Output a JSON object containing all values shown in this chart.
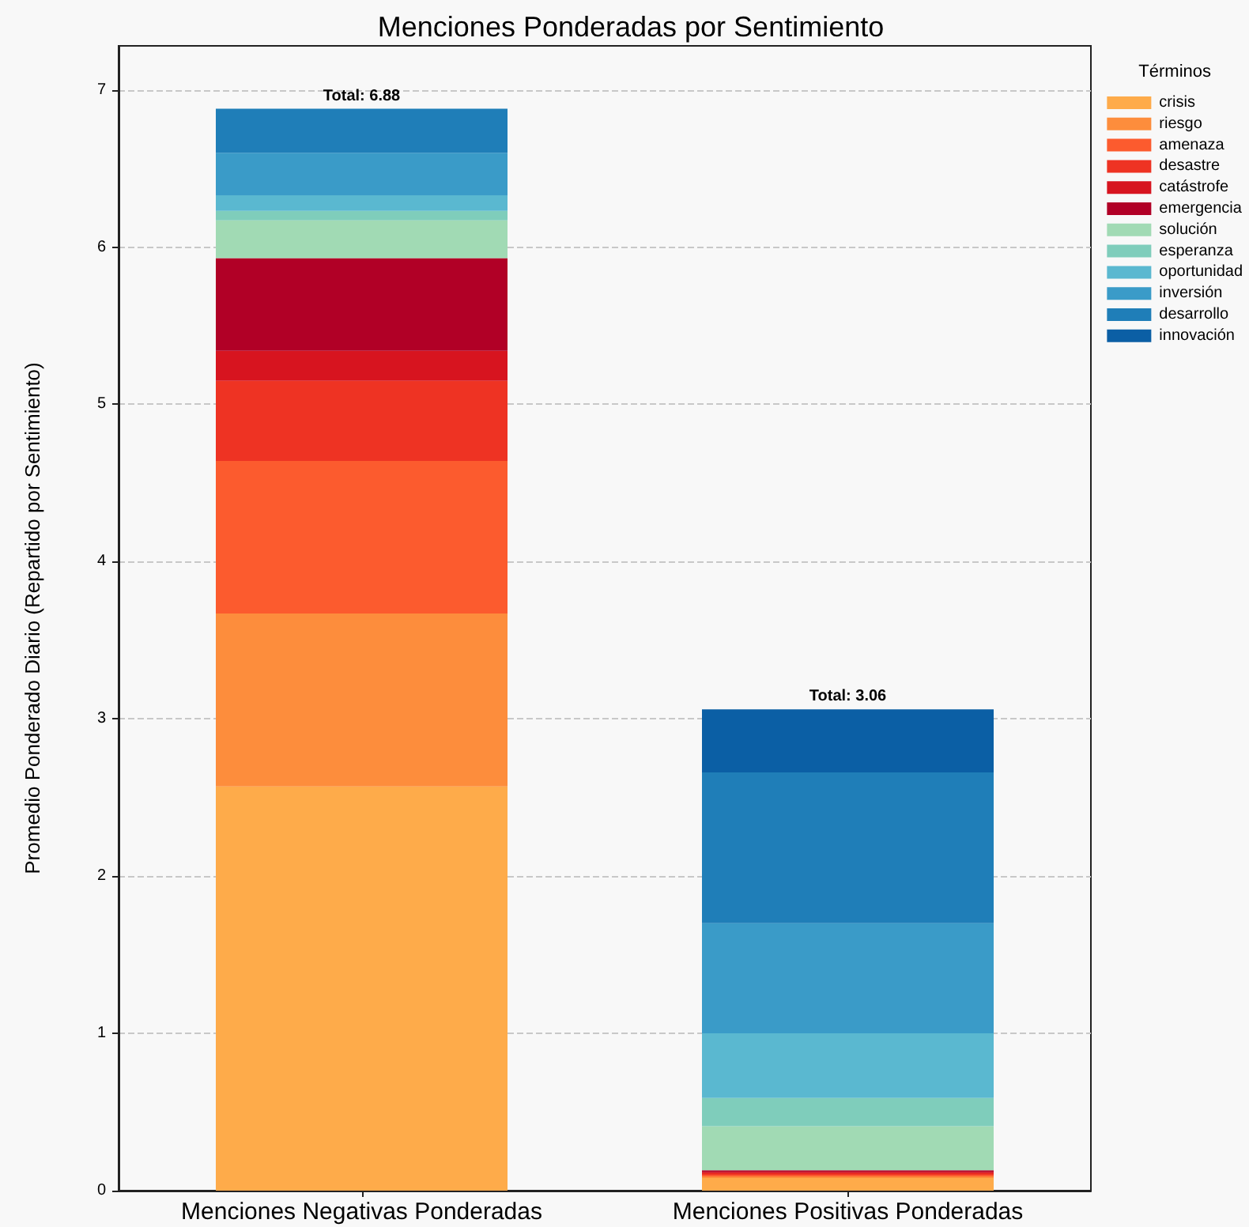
{
  "chart_data": {
    "type": "bar",
    "title": "Menciones Ponderadas por Sentimiento",
    "ylabel": "Promedio Ponderado Diario (Repartido por Sentimiento)",
    "legend_title": "Términos",
    "categories": [
      "Menciones Negativas Ponderadas",
      "Menciones Positivas Ponderadas"
    ],
    "stacked": true,
    "ylim": [
      0,
      7.28
    ],
    "yticks": [
      0,
      1,
      2,
      3,
      4,
      5,
      6,
      7
    ],
    "grid": "y",
    "legend": "top right",
    "totals": [
      "Total: 6.88",
      "Total: 3.06"
    ],
    "series": [
      {
        "name": "crisis",
        "color": "#feab4a",
        "values": [
          2.57,
          0.08
        ]
      },
      {
        "name": "riesgo",
        "color": "#fd8d3c",
        "values": [
          1.1,
          0.01
        ]
      },
      {
        "name": "amenaza",
        "color": "#fc5b2e",
        "values": [
          0.97,
          0.01
        ]
      },
      {
        "name": "desastre",
        "color": "#ee3323",
        "values": [
          0.51,
          0.01
        ]
      },
      {
        "name": "catástrofe",
        "color": "#d7141f",
        "values": [
          0.19,
          0.01
        ]
      },
      {
        "name": "emergencia",
        "color": "#b10026",
        "values": [
          0.59,
          0.01
        ]
      },
      {
        "name": "solución",
        "color": "#a1dab4",
        "values": [
          0.24,
          0.28
        ]
      },
      {
        "name": "esperanza",
        "color": "#7fcdbb",
        "values": [
          0.06,
          0.18
        ]
      },
      {
        "name": "oportunidad",
        "color": "#5ab8d0",
        "values": [
          0.1,
          0.41
        ]
      },
      {
        "name": "inversión",
        "color": "#3a9bc8",
        "values": [
          0.27,
          0.7
        ]
      },
      {
        "name": "desarrollo",
        "color": "#1f7eb8",
        "values": [
          0.28,
          0.96
        ]
      },
      {
        "name": "innovación",
        "color": "#0b5fa5",
        "values": [
          0,
          0.4
        ]
      }
    ]
  }
}
